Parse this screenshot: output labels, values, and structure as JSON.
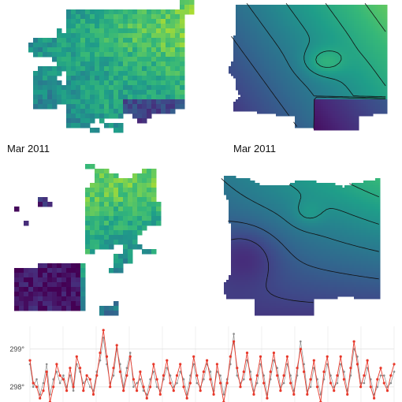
{
  "labels": {
    "row2_left": "Mar 2011",
    "row2_right": "Mar 2011"
  },
  "chart_data": [
    {
      "type": "heatmap",
      "panel": "top-left",
      "description": "raw observed field",
      "palette": "viridis",
      "contours": false
    },
    {
      "type": "heatmap",
      "panel": "top-right",
      "description": "smoothed field with contour lines",
      "palette": "viridis",
      "contours": true
    },
    {
      "type": "heatmap",
      "panel": "middle-left",
      "title": "Mar 2011",
      "palette": "viridis",
      "contours": false
    },
    {
      "type": "heatmap",
      "panel": "middle-right",
      "title": "Mar 2011",
      "palette": "viridis",
      "contours": true
    },
    {
      "type": "line",
      "panel": "bottom",
      "yticks": [
        "298°",
        "299°"
      ],
      "ytick_values": [
        298,
        299
      ],
      "ylim": [
        297.6,
        299.6
      ],
      "grid": true,
      "series": [
        {
          "color": "#e8392b",
          "values": [
            298.7,
            298.1,
            298.0,
            297.7,
            297.9,
            298.4,
            297.6,
            298.0,
            298.6,
            298.3,
            298.2,
            297.9,
            298.5,
            298.0,
            298.8,
            298.5,
            297.9,
            298.3,
            298.2,
            297.8,
            298.3,
            298.9,
            299.5,
            298.8,
            298.0,
            298.5,
            299.1,
            298.4,
            297.9,
            298.3,
            298.8,
            298.2,
            297.9,
            298.4,
            298.0,
            297.7,
            298.0,
            298.6,
            298.2,
            297.8,
            298.3,
            298.7,
            298.1,
            297.9,
            298.3,
            298.6,
            298.0,
            297.7,
            298.1,
            298.8,
            298.3,
            297.9,
            298.4,
            298.7,
            298.2,
            297.8,
            298.6,
            298.1,
            297.6,
            298.1,
            298.8,
            299.2,
            298.5,
            298.0,
            298.4,
            298.9,
            298.2,
            297.8,
            298.3,
            298.8,
            298.1,
            297.7,
            298.4,
            298.9,
            298.3,
            297.9,
            298.3,
            298.8,
            298.1,
            297.8,
            298.5,
            299.0,
            298.4,
            297.8,
            298.2,
            298.7,
            298.0,
            297.6,
            298.4,
            298.8,
            298.1,
            297.9,
            298.3,
            298.8,
            298.2,
            297.8,
            298.5,
            299.2,
            298.6,
            298.0,
            298.3,
            298.7,
            298.0,
            297.7,
            298.2,
            298.5,
            298.1,
            297.9,
            298.3,
            298.6
          ]
        },
        {
          "color": "#8c8c8c",
          "values": [
            298.6,
            298.0,
            298.2,
            297.8,
            298.1,
            298.6,
            297.8,
            298.2,
            298.4,
            298.1,
            298.3,
            298.0,
            298.3,
            297.9,
            298.6,
            298.4,
            298.1,
            298.2,
            298.0,
            297.9,
            298.4,
            298.7,
            299.3,
            298.6,
            298.1,
            298.3,
            299.0,
            298.6,
            298.0,
            298.5,
            298.9,
            298.0,
            298.1,
            298.2,
            297.9,
            297.8,
            298.2,
            298.4,
            298.0,
            297.9,
            298.2,
            298.5,
            298.3,
            298.0,
            298.1,
            298.4,
            298.2,
            297.8,
            298.3,
            298.6,
            298.1,
            298.0,
            298.2,
            298.6,
            298.4,
            297.9,
            298.4,
            298.3,
            297.8,
            298.2,
            298.6,
            299.4,
            298.3,
            298.1,
            298.2,
            298.7,
            298.4,
            297.9,
            298.1,
            298.6,
            298.3,
            297.8,
            298.2,
            298.7,
            298.5,
            298.0,
            298.1,
            298.6,
            298.3,
            297.9,
            298.3,
            299.2,
            298.6,
            297.9,
            298.0,
            298.5,
            298.2,
            297.8,
            298.2,
            298.6,
            298.3,
            298.0,
            298.1,
            298.6,
            298.4,
            297.9,
            298.3,
            299.0,
            298.8,
            298.1,
            298.1,
            298.5,
            298.2,
            297.8,
            298.0,
            298.3,
            298.3,
            298.0,
            298.1,
            298.4
          ]
        }
      ]
    }
  ]
}
